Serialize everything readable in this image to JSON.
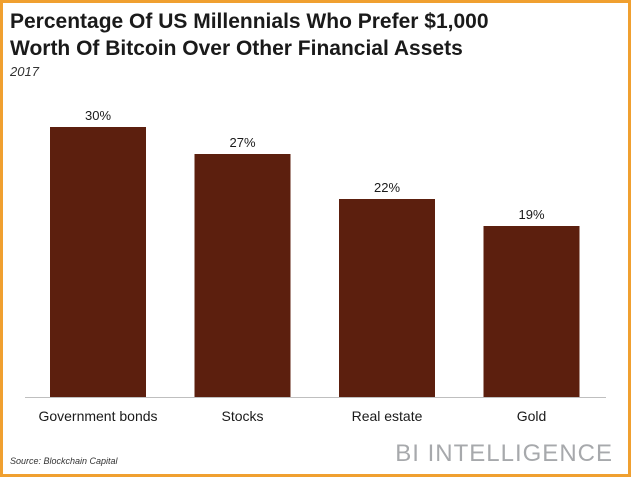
{
  "header": {
    "title_line1": "Percentage Of US Millennials Who Prefer $1,000",
    "title_line2": "Worth Of Bitcoin Over Other Financial Assets",
    "subtitle": "2017"
  },
  "footer": {
    "source": "Source: Blockchain Capital",
    "brand": "BI INTELLIGENCE"
  },
  "colors": {
    "bar": "#5c1f0e",
    "frame": "#f0a030",
    "text": "#1a1a1a",
    "brand": "#a7a9ac"
  },
  "chart_data": {
    "type": "bar",
    "title": "Percentage Of US Millennials Who Prefer $1,000 Worth Of Bitcoin Over Other Financial Assets",
    "subtitle": "2017",
    "categories": [
      "Government bonds",
      "Stocks",
      "Real estate",
      "Gold"
    ],
    "values": [
      30,
      27,
      22,
      19
    ],
    "data_labels": [
      "30%",
      "27%",
      "22%",
      "19%"
    ],
    "xlabel": "",
    "ylabel": "",
    "ylim": [
      0,
      30
    ],
    "grid": false,
    "legend": "none"
  }
}
